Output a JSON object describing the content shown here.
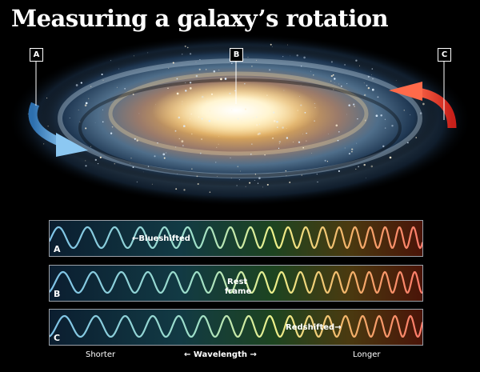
{
  "title": "Measuring a galaxy’s rotation",
  "markers": [
    "A",
    "B",
    "C"
  ],
  "panels": [
    {
      "letter": "A",
      "label": "Blueshifted",
      "shift": "blue"
    },
    {
      "letter": "B",
      "label_line1": "Rest",
      "label_line2": "frame",
      "shift": "rest"
    },
    {
      "letter": "C",
      "label": "Redshifted",
      "shift": "red"
    }
  ],
  "axis": {
    "left": "Shorter",
    "middle": "Wavelength",
    "right": "Longer",
    "arrow_left": "←",
    "arrow_right": "→"
  },
  "colors": {
    "approach_arrow": "#5aa8e6",
    "recede_arrow": "#e8322c"
  }
}
